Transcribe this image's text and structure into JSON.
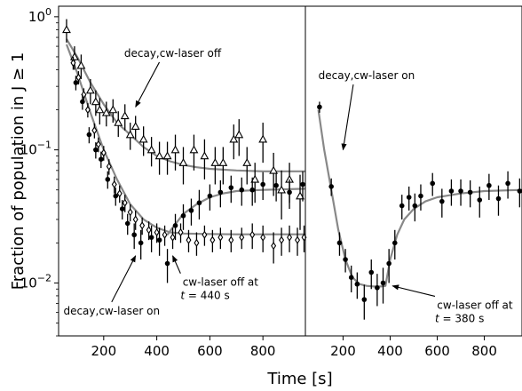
{
  "chart_data": {
    "type": "scatter",
    "ylabel": "Fraction of population in J ≥ 1",
    "xlabel": "Time [s]",
    "yscale": "log",
    "ylim": [
      0.004,
      1.2
    ],
    "y_ticks": [
      {
        "value": 1,
        "base": "10",
        "exp": "0"
      },
      {
        "value": 0.1,
        "base": "10",
        "exp": "−1"
      },
      {
        "value": 0.01,
        "base": "10",
        "exp": "−2"
      }
    ],
    "panels": [
      {
        "name": "left",
        "xlim": [
          30,
          960
        ],
        "x_ticks": [
          200,
          400,
          600,
          800
        ],
        "series": [
          {
            "marker": "open-triangle",
            "points": [
              {
                "x": 60,
                "y": 0.8,
                "err": 0.16
              },
              {
                "x": 90,
                "y": 0.5,
                "err": 0.1
              },
              {
                "x": 115,
                "y": 0.43,
                "err": 0.09
              },
              {
                "x": 150,
                "y": 0.28,
                "err": 0.06
              },
              {
                "x": 170,
                "y": 0.23,
                "err": 0.05
              },
              {
                "x": 185,
                "y": 0.2,
                "err": 0.045
              },
              {
                "x": 210,
                "y": 0.19,
                "err": 0.04
              },
              {
                "x": 235,
                "y": 0.2,
                "err": 0.04
              },
              {
                "x": 255,
                "y": 0.16,
                "err": 0.035
              },
              {
                "x": 280,
                "y": 0.18,
                "err": 0.04
              },
              {
                "x": 300,
                "y": 0.13,
                "err": 0.03
              },
              {
                "x": 320,
                "y": 0.15,
                "err": 0.03
              },
              {
                "x": 350,
                "y": 0.12,
                "err": 0.03
              },
              {
                "x": 380,
                "y": 0.1,
                "err": 0.025
              },
              {
                "x": 410,
                "y": 0.09,
                "err": 0.025
              },
              {
                "x": 440,
                "y": 0.09,
                "err": 0.025
              },
              {
                "x": 470,
                "y": 0.1,
                "err": 0.03
              },
              {
                "x": 500,
                "y": 0.08,
                "err": 0.025
              },
              {
                "x": 540,
                "y": 0.1,
                "err": 0.03
              },
              {
                "x": 580,
                "y": 0.09,
                "err": 0.03
              },
              {
                "x": 620,
                "y": 0.08,
                "err": 0.025
              },
              {
                "x": 650,
                "y": 0.08,
                "err": 0.025
              },
              {
                "x": 690,
                "y": 0.12,
                "err": 0.035
              },
              {
                "x": 710,
                "y": 0.13,
                "err": 0.04
              },
              {
                "x": 740,
                "y": 0.08,
                "err": 0.025
              },
              {
                "x": 770,
                "y": 0.06,
                "err": 0.02
              },
              {
                "x": 800,
                "y": 0.12,
                "err": 0.04
              },
              {
                "x": 840,
                "y": 0.07,
                "err": 0.025
              },
              {
                "x": 870,
                "y": 0.05,
                "err": 0.02
              },
              {
                "x": 900,
                "y": 0.06,
                "err": 0.02
              },
              {
                "x": 940,
                "y": 0.045,
                "err": 0.02
              }
            ]
          },
          {
            "marker": "open-diamond",
            "points": [
              {
                "x": 85,
                "y": 0.45,
                "err": 0.05
              },
              {
                "x": 105,
                "y": 0.35,
                "err": 0.04
              },
              {
                "x": 125,
                "y": 0.26,
                "err": 0.03
              },
              {
                "x": 140,
                "y": 0.2,
                "err": 0.025
              },
              {
                "x": 165,
                "y": 0.14,
                "err": 0.018
              },
              {
                "x": 180,
                "y": 0.11,
                "err": 0.014
              },
              {
                "x": 200,
                "y": 0.095,
                "err": 0.012
              },
              {
                "x": 220,
                "y": 0.075,
                "err": 0.01
              },
              {
                "x": 240,
                "y": 0.055,
                "err": 0.008
              },
              {
                "x": 260,
                "y": 0.047,
                "err": 0.007
              },
              {
                "x": 280,
                "y": 0.04,
                "err": 0.006
              },
              {
                "x": 300,
                "y": 0.034,
                "err": 0.005
              },
              {
                "x": 320,
                "y": 0.03,
                "err": 0.005
              },
              {
                "x": 345,
                "y": 0.027,
                "err": 0.004
              },
              {
                "x": 370,
                "y": 0.025,
                "err": 0.004
              },
              {
                "x": 400,
                "y": 0.024,
                "err": 0.004
              },
              {
                "x": 430,
                "y": 0.023,
                "err": 0.004
              },
              {
                "x": 460,
                "y": 0.022,
                "err": 0.004
              },
              {
                "x": 490,
                "y": 0.024,
                "err": 0.004
              },
              {
                "x": 520,
                "y": 0.021,
                "err": 0.004
              },
              {
                "x": 550,
                "y": 0.02,
                "err": 0.004
              },
              {
                "x": 580,
                "y": 0.023,
                "err": 0.004
              },
              {
                "x": 610,
                "y": 0.021,
                "err": 0.004
              },
              {
                "x": 640,
                "y": 0.022,
                "err": 0.004
              },
              {
                "x": 680,
                "y": 0.021,
                "err": 0.004
              },
              {
                "x": 720,
                "y": 0.022,
                "err": 0.004
              },
              {
                "x": 760,
                "y": 0.023,
                "err": 0.005
              },
              {
                "x": 800,
                "y": 0.022,
                "err": 0.005
              },
              {
                "x": 840,
                "y": 0.019,
                "err": 0.005
              },
              {
                "x": 870,
                "y": 0.021,
                "err": 0.005
              },
              {
                "x": 900,
                "y": 0.022,
                "err": 0.005
              },
              {
                "x": 930,
                "y": 0.021,
                "err": 0.005
              },
              {
                "x": 955,
                "y": 0.022,
                "err": 0.005
              }
            ]
          },
          {
            "marker": "filled-circle",
            "points": [
              {
                "x": 95,
                "y": 0.32,
                "err": 0.04
              },
              {
                "x": 120,
                "y": 0.23,
                "err": 0.03
              },
              {
                "x": 145,
                "y": 0.13,
                "err": 0.018
              },
              {
                "x": 170,
                "y": 0.1,
                "err": 0.014
              },
              {
                "x": 190,
                "y": 0.085,
                "err": 0.012
              },
              {
                "x": 215,
                "y": 0.06,
                "err": 0.009
              },
              {
                "x": 245,
                "y": 0.045,
                "err": 0.007
              },
              {
                "x": 270,
                "y": 0.036,
                "err": 0.006
              },
              {
                "x": 290,
                "y": 0.028,
                "err": 0.005
              },
              {
                "x": 315,
                "y": 0.023,
                "err": 0.005
              },
              {
                "x": 340,
                "y": 0.02,
                "err": 0.005
              },
              {
                "x": 380,
                "y": 0.022,
                "err": 0.005
              },
              {
                "x": 410,
                "y": 0.021,
                "err": 0.005
              },
              {
                "x": 440,
                "y": 0.014,
                "err": 0.004
              },
              {
                "x": 470,
                "y": 0.027,
                "err": 0.006
              },
              {
                "x": 500,
                "y": 0.032,
                "err": 0.007
              },
              {
                "x": 530,
                "y": 0.035,
                "err": 0.008
              },
              {
                "x": 560,
                "y": 0.04,
                "err": 0.01
              },
              {
                "x": 600,
                "y": 0.045,
                "err": 0.01
              },
              {
                "x": 640,
                "y": 0.048,
                "err": 0.011
              },
              {
                "x": 680,
                "y": 0.052,
                "err": 0.012
              },
              {
                "x": 720,
                "y": 0.05,
                "err": 0.012
              },
              {
                "x": 760,
                "y": 0.05,
                "err": 0.012
              },
              {
                "x": 800,
                "y": 0.055,
                "err": 0.013
              },
              {
                "x": 850,
                "y": 0.054,
                "err": 0.013
              },
              {
                "x": 900,
                "y": 0.048,
                "err": 0.012
              },
              {
                "x": 950,
                "y": 0.055,
                "err": 0.014
              }
            ]
          }
        ],
        "fits": [
          {
            "x": [
              60,
              100,
              150,
              200,
              250,
              300,
              350,
              400,
              450,
              500,
              550,
              600,
              700,
              800,
              960
            ],
            "y": [
              0.68,
              0.5,
              0.32,
              0.22,
              0.16,
              0.13,
              0.105,
              0.09,
              0.082,
              0.077,
              0.074,
              0.072,
              0.07,
              0.069,
              0.069
            ]
          },
          {
            "x": [
              60,
              100,
              150,
              200,
              250,
              300,
              350,
              400,
              450,
              500,
              600,
              700,
              800,
              960
            ],
            "y": [
              0.62,
              0.38,
              0.19,
              0.1,
              0.06,
              0.039,
              0.03,
              0.026,
              0.024,
              0.0235,
              0.0233,
              0.0232,
              0.0232,
              0.0232
            ]
          },
          {
            "x": [
              440,
              460,
              500,
              550,
              600,
              650,
              700,
              800,
              960
            ],
            "y": [
              0.023,
              0.026,
              0.033,
              0.039,
              0.044,
              0.047,
              0.049,
              0.05,
              0.051
            ]
          }
        ]
      },
      {
        "name": "right",
        "xlim": [
          40,
          960
        ],
        "x_ticks": [
          200,
          400,
          600,
          800
        ],
        "series": [
          {
            "marker": "filled-circle",
            "points": [
              {
                "x": 100,
                "y": 0.21,
                "err": 0.02
              },
              {
                "x": 150,
                "y": 0.053,
                "err": 0.008
              },
              {
                "x": 185,
                "y": 0.02,
                "err": 0.004
              },
              {
                "x": 210,
                "y": 0.015,
                "err": 0.003
              },
              {
                "x": 235,
                "y": 0.011,
                "err": 0.0025
              },
              {
                "x": 260,
                "y": 0.0098,
                "err": 0.0022
              },
              {
                "x": 290,
                "y": 0.0075,
                "err": 0.0022
              },
              {
                "x": 320,
                "y": 0.012,
                "err": 0.003
              },
              {
                "x": 345,
                "y": 0.0092,
                "err": 0.0025
              },
              {
                "x": 370,
                "y": 0.01,
                "err": 0.003
              },
              {
                "x": 395,
                "y": 0.014,
                "err": 0.004
              },
              {
                "x": 420,
                "y": 0.02,
                "err": 0.005
              },
              {
                "x": 450,
                "y": 0.038,
                "err": 0.008
              },
              {
                "x": 480,
                "y": 0.044,
                "err": 0.009
              },
              {
                "x": 505,
                "y": 0.038,
                "err": 0.009
              },
              {
                "x": 530,
                "y": 0.045,
                "err": 0.01
              },
              {
                "x": 580,
                "y": 0.056,
                "err": 0.011
              },
              {
                "x": 620,
                "y": 0.041,
                "err": 0.01
              },
              {
                "x": 660,
                "y": 0.049,
                "err": 0.011
              },
              {
                "x": 700,
                "y": 0.049,
                "err": 0.011
              },
              {
                "x": 740,
                "y": 0.048,
                "err": 0.011
              },
              {
                "x": 780,
                "y": 0.042,
                "err": 0.011
              },
              {
                "x": 820,
                "y": 0.054,
                "err": 0.012
              },
              {
                "x": 860,
                "y": 0.043,
                "err": 0.011
              },
              {
                "x": 900,
                "y": 0.056,
                "err": 0.013
              },
              {
                "x": 950,
                "y": 0.049,
                "err": 0.012
              }
            ]
          }
        ],
        "fits": [
          {
            "x": [
              95,
              120,
              150,
              180,
              210,
              240,
              270,
              300,
              330,
              360,
              380,
              400,
              430,
              460,
              500,
              550,
              600,
              700,
              800,
              960
            ],
            "y": [
              0.2,
              0.1,
              0.05,
              0.025,
              0.015,
              0.011,
              0.0098,
              0.0095,
              0.0094,
              0.0094,
              0.0095,
              0.015,
              0.023,
              0.03,
              0.036,
              0.041,
              0.044,
              0.047,
              0.049,
              0.05
            ]
          }
        ]
      }
    ],
    "annotations": [
      {
        "panel": "left",
        "text": "decay,cw-laser off",
        "x": 460,
        "y": 0.5,
        "arrow_to_x": 320,
        "arrow_to_y": 0.21
      },
      {
        "panel": "left",
        "text": "decay,cw-laser on",
        "x": 230,
        "y": 0.0058,
        "arrow_to_x": 320,
        "arrow_to_y": 0.016
      },
      {
        "panel": "left",
        "text": "cw-laser off at",
        "text2": "t = 440 s",
        "x": 640,
        "y": 0.0095,
        "arrow_to_x": 460,
        "arrow_to_y": 0.016
      },
      {
        "panel": "right",
        "text": "decay,cw-laser on",
        "x": 300,
        "y": 0.34,
        "arrow_to_x": 200,
        "arrow_to_y": 0.1
      },
      {
        "panel": "right",
        "text": "cw-laser off at",
        "text2": "t = 380 s",
        "x": 760,
        "y": 0.0064,
        "arrow_to_x": 410,
        "arrow_to_y": 0.0095
      }
    ]
  }
}
